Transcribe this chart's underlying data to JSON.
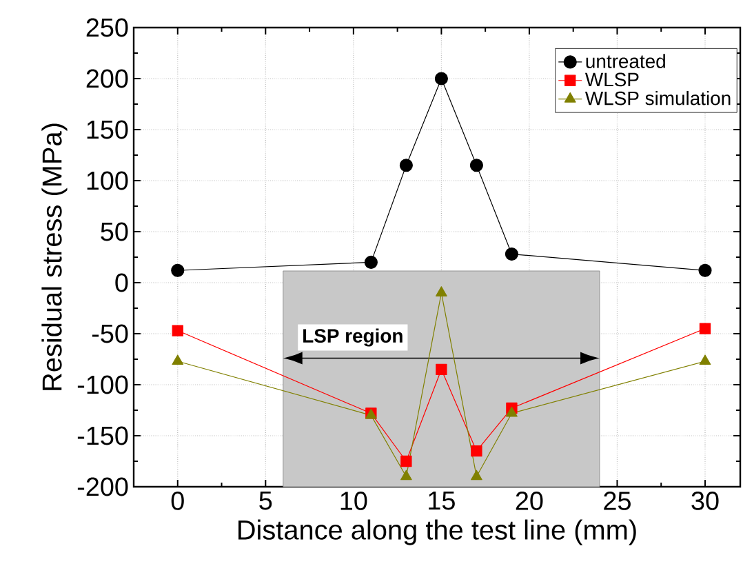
{
  "chart_data": {
    "type": "line",
    "xlabel": "Distance along the test line (mm)",
    "ylabel": "Residual stress (MPa)",
    "x": [
      0,
      11,
      13,
      15,
      17,
      19,
      30
    ],
    "series": [
      {
        "name": "untreated",
        "color": "#000000",
        "marker": "circle",
        "values": [
          12,
          20,
          115,
          200,
          115,
          28,
          12
        ]
      },
      {
        "name": "WLSP",
        "color": "#ff0000",
        "marker": "square",
        "values": [
          -47,
          -128,
          -175,
          -85,
          -165,
          -123,
          -45
        ]
      },
      {
        "name": "WLSP simulation",
        "color": "#808000",
        "marker": "triangle",
        "values": [
          -77,
          -130,
          -190,
          -10,
          -190,
          -128,
          -77
        ]
      }
    ],
    "xlim": [
      -2.5,
      32
    ],
    "ylim": [
      -200,
      250
    ],
    "xticks": [
      0,
      5,
      10,
      15,
      20,
      25,
      30
    ],
    "yticks": [
      -200,
      -150,
      -100,
      -50,
      0,
      50,
      100,
      150,
      200,
      250
    ],
    "bands": [
      {
        "axis": "x",
        "from": 6,
        "to": 24,
        "label": "LSP region",
        "color": "#c8c8c8"
      }
    ],
    "grid": true,
    "legend": "top right",
    "line_style": "solid"
  }
}
